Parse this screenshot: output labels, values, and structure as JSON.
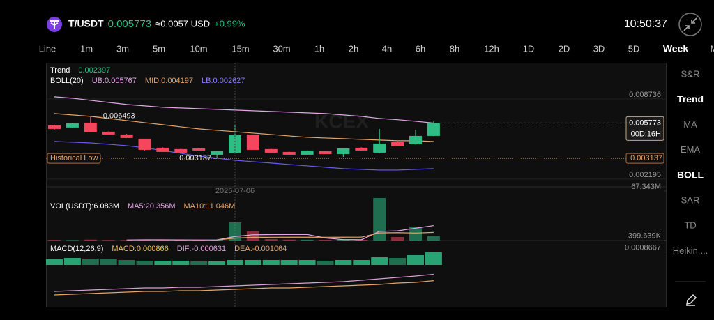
{
  "header": {
    "pair": "T/USDT",
    "price": "0.005773",
    "approx": "≈0.0057 USD",
    "change": "+0.99%",
    "time": "10:50:37"
  },
  "timeframes": [
    "Line",
    "1m",
    "3m",
    "5m",
    "10m",
    "15m",
    "30m",
    "1h",
    "2h",
    "4h",
    "6h",
    "8h",
    "12h",
    "1D",
    "2D",
    "3D",
    "5D",
    "Week",
    "M"
  ],
  "active_timeframe": "Week",
  "indicators": [
    "S&R",
    "Trend",
    "MA",
    "EMA",
    "BOLL",
    "SAR",
    "TD",
    "Heikin ..."
  ],
  "active_indicators": [
    "Trend",
    "BOLL"
  ],
  "chart_data": [
    {
      "type": "candlestick",
      "log_scale": true,
      "grid": true,
      "watermark": "KCEX",
      "ylim": [
        0.00192,
        0.0163
      ],
      "yticks": [
        0.008736,
        0.002195
      ],
      "up_color": "#2ebd85",
      "down_color": "#f6465d",
      "open": [
        0.005533,
        0.005338,
        0.005806,
        0.004966,
        0.004733,
        0.004404,
        0.003767,
        0.003678,
        0.003722,
        0.003339,
        0.00342,
        0.004733,
        0.003678,
        0.003504,
        0.003339,
        0.003547,
        0.003379,
        0.003767,
        0.003462,
        0.004147,
        0.003999,
        0.00462
      ],
      "high": [
        0.0056,
        0.005806,
        0.006493,
        0.005,
        0.00478,
        0.004404,
        0.0038,
        0.0037,
        0.00375,
        0.00356,
        0.005533,
        0.004733,
        0.0037,
        0.00352,
        0.0036,
        0.00356,
        0.003722,
        0.0038,
        0.005211,
        0.0042,
        0.005148,
        0.005947
      ],
      "low": [
        0.00515,
        0.0053,
        0.004907,
        0.004733,
        0.004457,
        0.00359,
        0.003504,
        0.003462,
        0.00359,
        0.003137,
        0.0034,
        0.003633,
        0.003462,
        0.003339,
        0.00332,
        0.003379,
        0.003222,
        0.00359,
        0.00344,
        0.003859,
        0.00398,
        0.0046
      ],
      "close": [
        0.005211,
        0.005736,
        0.004907,
        0.004733,
        0.004457,
        0.003633,
        0.003504,
        0.003462,
        0.00359,
        0.003547,
        0.004676,
        0.003633,
        0.003462,
        0.003339,
        0.00359,
        0.003379,
        0.003722,
        0.00359,
        0.004048,
        0.003859,
        0.00462,
        0.005773
      ],
      "lines": [
        {
          "color": "#e3a6e6",
          "values": [
            0.009057,
            0.008842,
            0.008528,
            0.008227,
            0.007937,
            0.007747,
            0.007564,
            0.007474,
            0.007385,
            0.007296,
            0.007209,
            0.007123,
            0.007038,
            0.006954,
            0.006871,
            0.006789,
            0.006628,
            0.00647,
            0.00624,
            0.00611,
            0.005947,
            0.005767
          ]
        },
        {
          "color": "#e8a468",
          "values": [
            0.006789,
            0.006628,
            0.00647,
            0.00624,
            0.006019,
            0.005806,
            0.005601,
            0.005402,
            0.005211,
            0.005087,
            0.004966,
            0.004848,
            0.004733,
            0.00462,
            0.004511,
            0.004457,
            0.004404,
            0.00435,
            0.0043,
            0.004248,
            0.004248,
            0.004197
          ]
        },
        {
          "color": "#6b5cf0",
          "values": [
            0.004198,
            0.004147,
            0.004097,
            0.003999,
            0.003905,
            0.003767,
            0.00359,
            0.00342,
            0.003261,
            0.003146,
            0.003034,
            0.002962,
            0.002892,
            0.002823,
            0.002756,
            0.002691,
            0.002627,
            0.002596,
            0.002564,
            0.002564,
            0.002596,
            0.002627
          ]
        }
      ],
      "legend": [
        [
          {
            "text": "Trend",
            "color": "#ffffff"
          },
          {
            "text": "0.002397",
            "color": "#2ebd85"
          }
        ],
        [
          {
            "text": "BOLL(20)",
            "color": "#ffffff"
          },
          {
            "text": "UB:0.005767",
            "color": "#e3a6e6"
          },
          {
            "text": "MID:0.004197",
            "color": "#e8a468"
          },
          {
            "text": "LB:0.002627",
            "color": "#8a7cf6"
          }
        ]
      ],
      "current_price": 0.005773,
      "countdown": "00D:16H",
      "historical_low": 0.003137,
      "historical_low_label": "Historical Low",
      "high_annotation": 0.006493,
      "low_annotation": 0.003137,
      "crosshair_date": "2026-07-06"
    },
    {
      "type": "bar",
      "ylim": [
        0,
        67343000
      ],
      "yticks": [
        {
          "value": 67343000,
          "label": "67.343M"
        },
        {
          "value": 399639,
          "label": "399.639K"
        }
      ],
      "values": [
        800000,
        600000,
        1200000,
        700000,
        600000,
        1500000,
        700000,
        600000,
        500000,
        900000,
        24660000,
        12330000,
        1800000,
        1200000,
        1100000,
        900000,
        1300000,
        1000000,
        57860000,
        4740000,
        18970000,
        6083000
      ],
      "lines": [
        {
          "color": "#e3a6e6",
          "values": [
            null,
            null,
            null,
            null,
            780000,
            920000,
            940000,
            820000,
            780000,
            840000,
            5472000,
            7798000,
            8038000,
            8178000,
            8218000,
            3466000,
            1260000,
            1100000,
            12432000,
            13160000,
            16774000,
            20356000
          ]
        },
        {
          "color": "#e8a468",
          "values": [
            null,
            null,
            null,
            null,
            null,
            null,
            null,
            null,
            null,
            810000,
            3196000,
            4369000,
            4429000,
            4479000,
            4529000,
            4469000,
            4529000,
            4569000,
            10305000,
            10689000,
            10120000,
            11046000
          ]
        }
      ],
      "legend": [
        [
          {
            "text": "VOL(USDT):6.083M",
            "color": "#ffffff"
          },
          {
            "text": "MA5:20.356M",
            "color": "#e3a6e6"
          },
          {
            "text": "MA10:11.046M",
            "color": "#e8a468"
          }
        ]
      ]
    },
    {
      "type": "macd",
      "ylim": [
        -0.002726,
        0.001504
      ],
      "yticks": [
        0.0008667
      ],
      "color": "#2ebd85",
      "values": [
        0.000376,
        0.00047,
        0.000423,
        0.000376,
        0.000329,
        0.000282,
        0.000282,
        0.000282,
        0.000235,
        0.000235,
        0.000329,
        0.000329,
        0.000329,
        0.000329,
        0.000329,
        0.000282,
        0.000329,
        0.000329,
        0.000517,
        0.00047,
        0.000658,
        0.000866
      ],
      "lines": [
        {
          "color": "#d9a0d6",
          "values": [
            -0.001786,
            -0.001739,
            -0.001692,
            -0.001645,
            -0.001598,
            -0.001551,
            -0.001551,
            -0.001504,
            -0.001504,
            -0.001457,
            -0.00141,
            -0.001363,
            -0.001316,
            -0.001269,
            -0.001222,
            -0.001175,
            -0.001128,
            -0.001034,
            -0.00094,
            -0.000846,
            -0.000752,
            -0.000631
          ]
        },
        {
          "color": "#e8a468",
          "values": [
            -0.002021,
            -0.001974,
            -0.001927,
            -0.00188,
            -0.001833,
            -0.001786,
            -0.001786,
            -0.001739,
            -0.001739,
            -0.001692,
            -0.001645,
            -0.001598,
            -0.001551,
            -0.001551,
            -0.001504,
            -0.001457,
            -0.00141,
            -0.001363,
            -0.001316,
            -0.001222,
            -0.001175,
            -0.001064
          ]
        }
      ],
      "legend": [
        [
          {
            "text": "MACD(12,26,9)",
            "color": "#ffffff"
          },
          {
            "text": "MACD:0.000866",
            "color": "#f0c36a"
          },
          {
            "text": "DIF:-0.000631",
            "color": "#d9a0d6"
          },
          {
            "text": "DEA:-0.001064",
            "color": "#e8a468"
          }
        ]
      ]
    }
  ]
}
